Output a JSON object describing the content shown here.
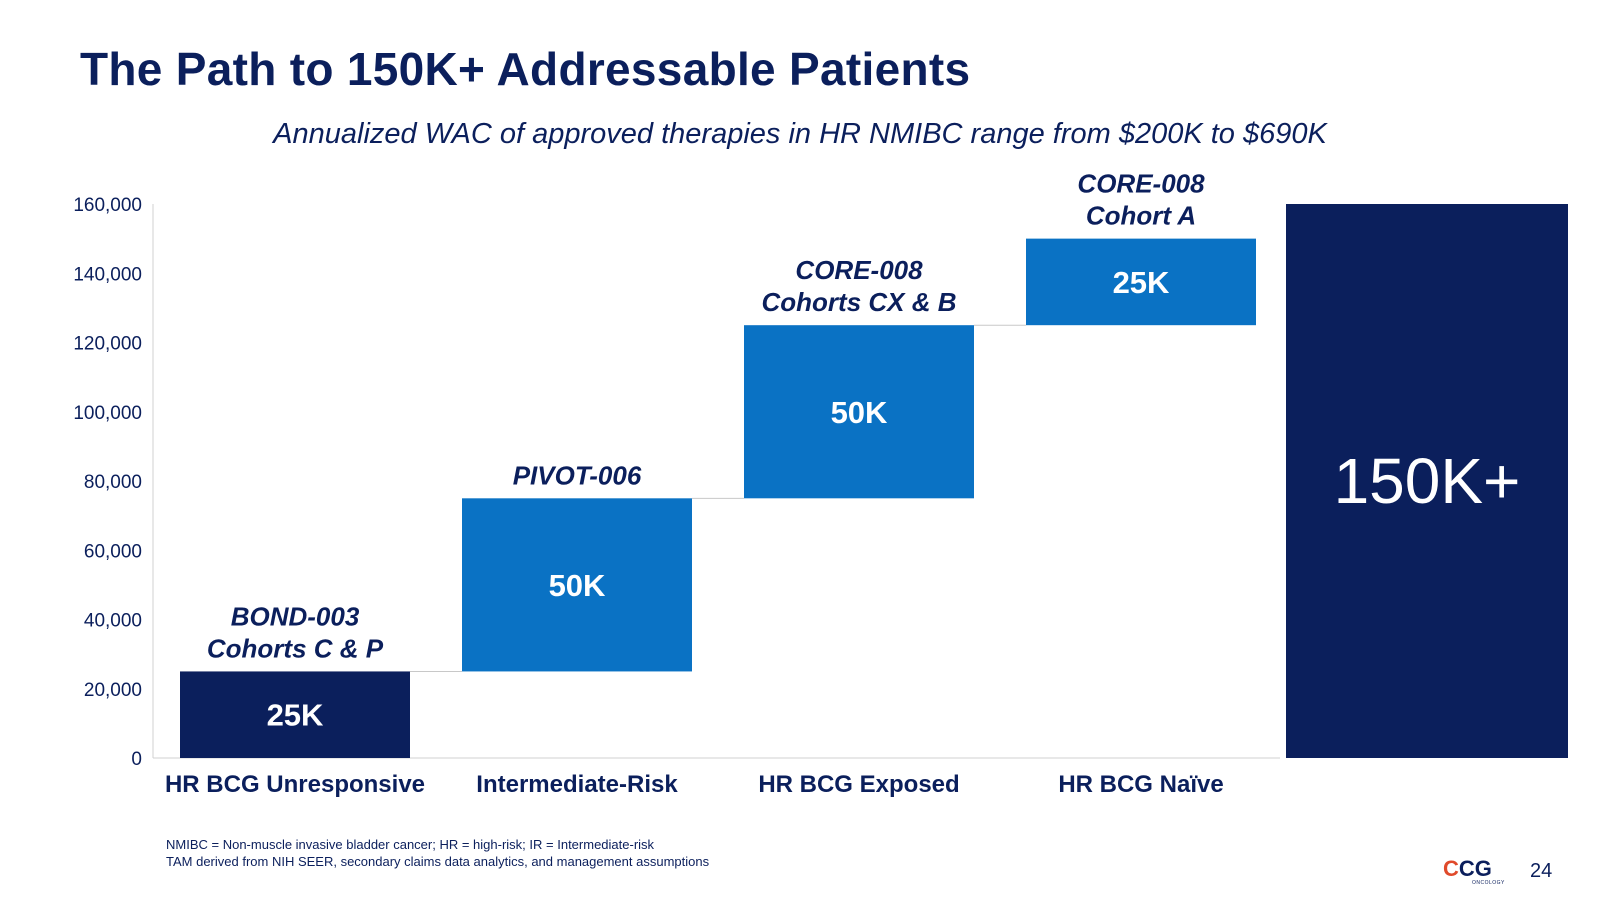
{
  "header": {
    "title": "The Path to 150K+ Addressable Patients",
    "subtitle": "Annualized WAC of approved therapies in HR NMIBC range from $200K to $690K"
  },
  "colors": {
    "navy": "#0b1f5c",
    "blue": "#0a72c4",
    "connector": "#c8c8c8"
  },
  "chart_data": {
    "type": "bar",
    "variant": "waterfall",
    "title": "",
    "xlabel": "",
    "ylabel": "",
    "ylim": [
      0,
      160000
    ],
    "yticks": [
      0,
      20000,
      40000,
      60000,
      80000,
      100000,
      120000,
      140000,
      160000
    ],
    "ytick_labels": [
      "0",
      "20,000",
      "40,000",
      "60,000",
      "80,000",
      "100,000",
      "120,000",
      "140,000",
      "160,000"
    ],
    "grid": false,
    "legend": "none",
    "categories": [
      "HR BCG Unresponsive",
      "Intermediate-Risk",
      "HR BCG Exposed",
      "HR BCG Naïve",
      ""
    ],
    "bars": [
      {
        "category": "HR BCG Unresponsive",
        "base": 0,
        "value": 25000,
        "label": "25K",
        "annotation": [
          "BOND-003",
          "Cohorts C & P"
        ],
        "color": "#0b1f5c"
      },
      {
        "category": "Intermediate-Risk",
        "base": 25000,
        "value": 50000,
        "label": "50K",
        "annotation": [
          "PIVOT-006"
        ],
        "color": "#0a72c4"
      },
      {
        "category": "HR BCG Exposed",
        "base": 75000,
        "value": 50000,
        "label": "50K",
        "annotation": [
          "CORE-008",
          "Cohorts CX & B"
        ],
        "color": "#0a72c4"
      },
      {
        "category": "HR BCG Naïve",
        "base": 125000,
        "value": 25000,
        "label": "25K",
        "annotation": [
          "CORE-008",
          "Cohort A"
        ],
        "color": "#0a72c4"
      },
      {
        "category": "",
        "base": 0,
        "value": 160000,
        "label": "150K+",
        "annotation": [],
        "color": "#0b1f5c",
        "total": true
      }
    ]
  },
  "footnotes": [
    "NMIBC = Non-muscle invasive bladder cancer; HR = high-risk; IR = Intermediate-risk",
    "TAM derived from NIH SEER, secondary claims data analytics, and management assumptions"
  ],
  "logo": {
    "mark": "C",
    "text": "CG",
    "sub": "ONCOLOGY"
  },
  "page_number": "24"
}
